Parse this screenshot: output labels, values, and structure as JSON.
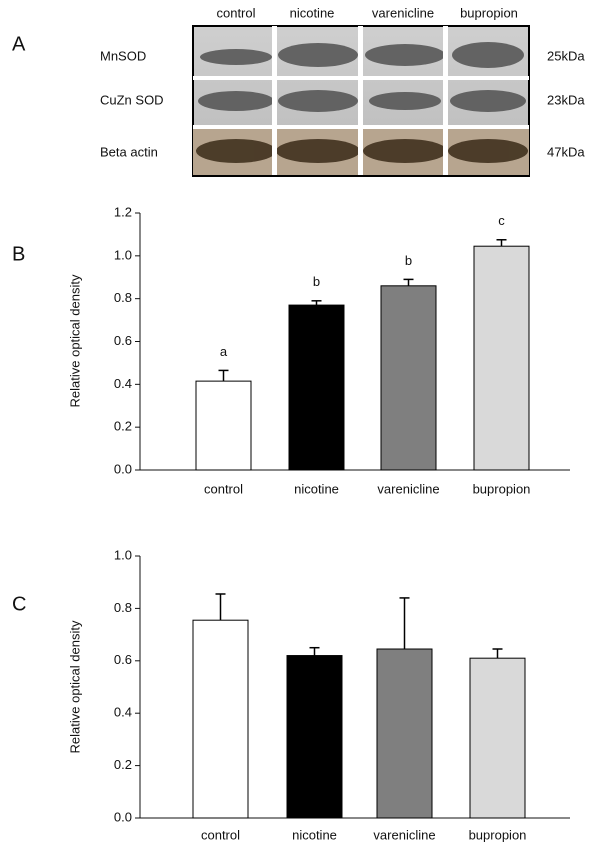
{
  "panel_labels": [
    "A",
    "B",
    "C"
  ],
  "blot": {
    "lanes": [
      "control",
      "nicotine",
      "varenicline",
      "bupropion"
    ],
    "proteins": [
      {
        "name": "MnSOD",
        "size": "25kDa"
      },
      {
        "name": "CuZn SOD",
        "size": "23kDa"
      },
      {
        "name": "Beta actin",
        "size": "47kDa"
      }
    ]
  },
  "chart_data": [
    {
      "type": "bar",
      "ylabel": "Relative optical density",
      "categories": [
        "control",
        "nicotine",
        "varenicline",
        "bupropion"
      ],
      "values": [
        0.415,
        0.77,
        0.86,
        1.045
      ],
      "errors": [
        0.05,
        0.02,
        0.03,
        0.03
      ],
      "annotations": [
        "a",
        "b",
        "b",
        "c"
      ],
      "colors": [
        "#ffffff",
        "#000000",
        "#7f7f7f",
        "#d9d9d9"
      ],
      "ylim": [
        0,
        1.2
      ],
      "yticks": [
        {
          "value": 0,
          "label": "0.0"
        },
        0.2,
        0.4,
        0.6,
        0.8,
        {
          "value": 1,
          "label": "1.0"
        },
        1.2
      ]
    },
    {
      "type": "bar",
      "ylabel": "Relative optical density",
      "categories": [
        "control",
        "nicotine",
        "varenicline",
        "bupropion"
      ],
      "values": [
        0.755,
        0.62,
        0.645,
        0.61
      ],
      "errors": [
        0.1,
        0.03,
        0.195,
        0.035
      ],
      "colors": [
        "#ffffff",
        "#000000",
        "#7f7f7f",
        "#d9d9d9"
      ],
      "ylim": [
        0,
        1.0
      ],
      "yticks": [
        {
          "value": 0,
          "label": "0.0"
        },
        0.2,
        0.4,
        0.6,
        0.8,
        {
          "value": 1,
          "label": "1.0"
        }
      ]
    }
  ]
}
